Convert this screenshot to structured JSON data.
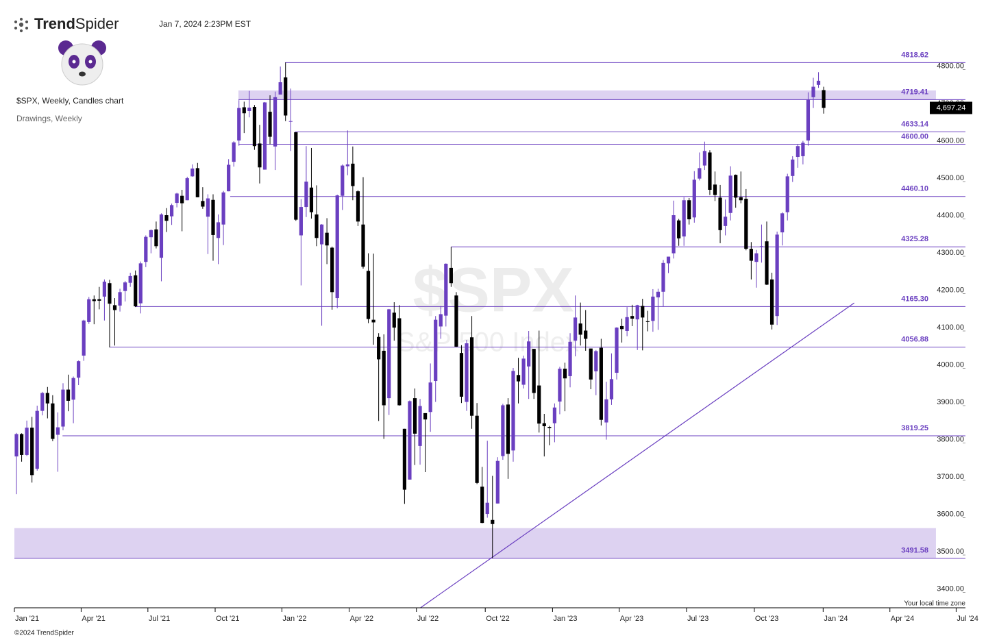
{
  "header": {
    "brand_bold": "Trend",
    "brand_light": "Spider",
    "timestamp": "Jan 7, 2024 2:23PM EST"
  },
  "footer": {
    "copyright": "©2024 TrendSpider",
    "timezone": "Your local time zone"
  },
  "chart_data": {
    "type": "candlestick",
    "title": "$SPX, Weekly, Candles chart",
    "subtitle": "Drawings, Weekly",
    "watermark": "$SPX",
    "watermark_sub": "S&P 500 Index",
    "up_color": "#6a3fc0",
    "down_color": "#000000",
    "level_color": "#6a3fc0",
    "zone_color": "#d9cdf0",
    "ylim": [
      3400,
      4800
    ],
    "yticks": [
      {
        "value": 3400,
        "label": "3400.00"
      },
      {
        "value": 3500,
        "label": "3500.00"
      },
      {
        "value": 3600,
        "label": "3600.00"
      },
      {
        "value": 3700,
        "label": "3700.00"
      },
      {
        "value": 3800,
        "label": "3800.00"
      },
      {
        "value": 3900,
        "label": "3900.00"
      },
      {
        "value": 4000,
        "label": "4000.00"
      },
      {
        "value": 4100,
        "label": "4100.00"
      },
      {
        "value": 4200,
        "label": "4200.00"
      },
      {
        "value": 4300,
        "label": "4300.00"
      },
      {
        "value": 4400,
        "label": "4400.00"
      },
      {
        "value": 4500,
        "label": "4500.00"
      },
      {
        "value": 4600,
        "label": "4600.00"
      },
      {
        "value": 4700,
        "label": "4700.00"
      },
      {
        "value": 4800,
        "label": "4800.00"
      }
    ],
    "xlim": [
      -0.4,
      183.4
    ],
    "xticks": [
      {
        "value": -0.4,
        "label": "Jan '21"
      },
      {
        "value": 12.5,
        "label": "Apr '21"
      },
      {
        "value": 25.4,
        "label": "Jul '21"
      },
      {
        "value": 38.4,
        "label": "Oct '21"
      },
      {
        "value": 51.3,
        "label": "Jan '22"
      },
      {
        "value": 64.3,
        "label": "Apr '22"
      },
      {
        "value": 77.3,
        "label": "Jul '22"
      },
      {
        "value": 90.6,
        "label": "Oct '22"
      },
      {
        "value": 103.6,
        "label": "Jan '23"
      },
      {
        "value": 116.5,
        "label": "Apr '23"
      },
      {
        "value": 129.5,
        "label": "Jul '23"
      },
      {
        "value": 142.6,
        "label": "Oct '23"
      },
      {
        "value": 155.9,
        "label": "Jan '24"
      },
      {
        "value": 168.8,
        "label": "Apr '24"
      },
      {
        "value": 181.6,
        "label": "Jul '24"
      }
    ],
    "last_price": {
      "value": 4697.24,
      "label": "4,697.24"
    },
    "levels": [
      {
        "value": 4818.62,
        "label": "4818.62",
        "start": 51.9
      },
      {
        "value": 4719.41,
        "label": "4719.41",
        "start": 42.9
      },
      {
        "value": 4633.14,
        "label": "4633.14",
        "start": 53.8
      },
      {
        "value": 4600.0,
        "label": "4600.00",
        "start": 42.9
      },
      {
        "value": 4460.1,
        "label": "4460.10",
        "start": 41.3
      },
      {
        "value": 4325.28,
        "label": "4325.28",
        "start": 84
      },
      {
        "value": 4165.3,
        "label": "4165.30",
        "start": 22.9
      },
      {
        "value": 4056.88,
        "label": "4056.88",
        "start": 18
      },
      {
        "value": 3819.25,
        "label": "3819.25",
        "start": 8.9
      },
      {
        "value": 3491.58,
        "label": "3491.58",
        "start": -0.4
      }
    ],
    "zones": [
      {
        "low": 4719.41,
        "high": 4744,
        "start": 42.9,
        "end": 177.7
      },
      {
        "low": 3491.58,
        "high": 3572,
        "start": -0.4,
        "end": 177.7
      }
    ],
    "trendline": {
      "x": [
        78.1,
        161.9
      ],
      "y": [
        3359,
        4175
      ]
    },
    "ohlc": [
      [
        3764,
        3827,
        3663,
        3824
      ],
      [
        3824,
        3826,
        3750,
        3768
      ],
      [
        3768,
        3860,
        3765,
        3841
      ],
      [
        3841,
        3870,
        3694,
        3714
      ],
      [
        3731,
        3900,
        3726,
        3886
      ],
      [
        3886,
        3937,
        3874,
        3934
      ],
      [
        3934,
        3950,
        3866,
        3906
      ],
      [
        3906,
        3928,
        3805,
        3811
      ],
      [
        3822,
        3882,
        3723,
        3842
      ],
      [
        3844,
        3960,
        3834,
        3943
      ],
      [
        3943,
        3983,
        3885,
        3913
      ],
      [
        3916,
        3978,
        3853,
        3974
      ],
      [
        3975,
        4021,
        3955,
        4019
      ],
      [
        4034,
        4130,
        4020,
        4128
      ],
      [
        4124,
        4191,
        4119,
        4185
      ],
      [
        4185,
        4195,
        4118,
        4180
      ],
      [
        4185,
        4218,
        4158,
        4181
      ],
      [
        4192,
        4238,
        4128,
        4232
      ],
      [
        4228,
        4237,
        4056,
        4173
      ],
      [
        4169,
        4188,
        4061,
        4156
      ],
      [
        4168,
        4213,
        4152,
        4204
      ],
      [
        4207,
        4234,
        4179,
        4230
      ],
      [
        4229,
        4256,
        4218,
        4247
      ],
      [
        4249,
        4262,
        4164,
        4166
      ],
      [
        4174,
        4286,
        4147,
        4281
      ],
      [
        4285,
        4356,
        4271,
        4352
      ],
      [
        4351,
        4372,
        4308,
        4370
      ],
      [
        4372,
        4393,
        4321,
        4327
      ],
      [
        4296,
        4415,
        4233,
        4412
      ],
      [
        4410,
        4429,
        4365,
        4395
      ],
      [
        4407,
        4441,
        4384,
        4437
      ],
      [
        4443,
        4470,
        4431,
        4468
      ],
      [
        4462,
        4478,
        4367,
        4442
      ],
      [
        4450,
        4513,
        4450,
        4509
      ],
      [
        4514,
        4546,
        4513,
        4535
      ],
      [
        4536,
        4550,
        4458,
        4458
      ],
      [
        4448,
        4485,
        4427,
        4433
      ],
      [
        4406,
        4466,
        4306,
        4455
      ],
      [
        4451,
        4466,
        4288,
        4357
      ],
      [
        4349,
        4412,
        4279,
        4391
      ],
      [
        4385,
        4475,
        4330,
        4471
      ],
      [
        4474,
        4560,
        4474,
        4545
      ],
      [
        4553,
        4608,
        4540,
        4605
      ],
      [
        4610,
        4718,
        4596,
        4697
      ],
      [
        4699,
        4714,
        4630,
        4683
      ],
      [
        4689,
        4743,
        4672,
        4698
      ],
      [
        4700,
        4705,
        4585,
        4595
      ],
      [
        4602,
        4652,
        4495,
        4538
      ],
      [
        4532,
        4713,
        4532,
        4712
      ],
      [
        4687,
        4731,
        4600,
        4620
      ],
      [
        4594,
        4741,
        4531,
        4726
      ],
      [
        4733,
        4808,
        4733,
        4766
      ],
      [
        4779,
        4818.62,
        4662,
        4677
      ],
      [
        4662,
        4749,
        4582,
        4662
      ],
      [
        4632,
        4632,
        4395,
        4398
      ],
      [
        4356,
        4453,
        4222,
        4432
      ],
      [
        4432,
        4595,
        4405,
        4500
      ],
      [
        4484,
        4590,
        4401,
        4418
      ],
      [
        4412,
        4490,
        4327,
        4349
      ],
      [
        4332,
        4386,
        4114,
        4385
      ],
      [
        4363,
        4402,
        4279,
        4329
      ],
      [
        4323,
        4326,
        4157,
        4204
      ],
      [
        4188,
        4465,
        4161,
        4463
      ],
      [
        4462,
        4546,
        4424,
        4543
      ],
      [
        4541,
        4637,
        4517,
        4546
      ],
      [
        4548,
        4594,
        4450,
        4488
      ],
      [
        4474,
        4477,
        4381,
        4393
      ],
      [
        4385,
        4512,
        4267,
        4272
      ],
      [
        4261,
        4308,
        4121,
        4132
      ],
      [
        4130,
        4307,
        4063,
        4123
      ],
      [
        4084,
        4094,
        3859,
        4024
      ],
      [
        4047,
        4091,
        3811,
        3901
      ],
      [
        3920,
        4159,
        3875,
        4158
      ],
      [
        4149,
        4177,
        4074,
        4109
      ],
      [
        4134,
        4169,
        3900,
        3901
      ],
      [
        3838,
        3838,
        3637,
        3675
      ],
      [
        3702,
        3914,
        3702,
        3912
      ],
      [
        3920,
        3946,
        3741,
        3825
      ],
      [
        3792,
        3918,
        3742,
        3899
      ],
      [
        3880,
        3880,
        3722,
        3863
      ],
      [
        3883,
        4013,
        3830,
        3962
      ],
      [
        3966,
        4140,
        3910,
        4130
      ],
      [
        4112,
        4167,
        4079,
        4145
      ],
      [
        4141,
        4281,
        4112,
        4280
      ],
      [
        4269,
        4325.28,
        4218,
        4228
      ],
      [
        4195,
        4204,
        4057,
        4058
      ],
      [
        4041,
        4062,
        3907,
        3924
      ],
      [
        3910,
        4076,
        3886,
        4067
      ],
      [
        4083,
        4140,
        3838,
        3873
      ],
      [
        3873,
        3907,
        3690,
        3693
      ],
      [
        3683,
        3736,
        3585,
        3586
      ],
      [
        3610,
        3806,
        3600,
        3640
      ],
      [
        3594,
        3712,
        3491.58,
        3583
      ],
      [
        3638,
        3762,
        3638,
        3752
      ],
      [
        3765,
        3905,
        3755,
        3901
      ],
      [
        3903,
        3920,
        3704,
        3771
      ],
      [
        3780,
        4001,
        3750,
        3993
      ],
      [
        3982,
        4028,
        3906,
        3965
      ],
      [
        3956,
        4034,
        3946,
        4026
      ],
      [
        4005,
        4100,
        3918,
        4072
      ],
      [
        4052,
        4052,
        3918,
        3934
      ],
      [
        3954,
        4101,
        3828,
        3852
      ],
      [
        3853,
        3878,
        3764,
        3845
      ],
      [
        3843,
        3846,
        3794,
        3840
      ],
      [
        3853,
        3906,
        3802,
        3895
      ],
      [
        3911,
        4004,
        3877,
        3999
      ],
      [
        3999,
        4015,
        3885,
        3973
      ],
      [
        3979,
        4094,
        3949,
        4071
      ],
      [
        4074,
        4195,
        4032,
        4136
      ],
      [
        4120,
        4176,
        4061,
        4090
      ],
      [
        4101,
        4156,
        4047,
        4079
      ],
      [
        4053,
        4053,
        3944,
        3970
      ],
      [
        3992,
        4049,
        3928,
        4046
      ],
      [
        4055,
        4079,
        3847,
        3862
      ],
      [
        3855,
        3964,
        3809,
        3917
      ],
      [
        3917,
        4040,
        3902,
        3971
      ],
      [
        3988,
        4110,
        3970,
        4109
      ],
      [
        4113,
        4133,
        4069,
        4105
      ],
      [
        4100,
        4164,
        4086,
        4137
      ],
      [
        4140,
        4170,
        4113,
        4133
      ],
      [
        4131,
        4170,
        4049,
        4169
      ],
      [
        4167,
        4186,
        4048,
        4136
      ],
      [
        4126,
        4154,
        4099,
        4124
      ],
      [
        4127,
        4212,
        4098,
        4192
      ],
      [
        4190,
        4213,
        4103,
        4205
      ],
      [
        4205,
        4290,
        4166,
        4282
      ],
      [
        4281,
        4299,
        4255,
        4299
      ],
      [
        4308,
        4449,
        4294,
        4410
      ],
      [
        4396,
        4400,
        4328,
        4348
      ],
      [
        4353,
        4458,
        4328,
        4450
      ],
      [
        4450,
        4456,
        4385,
        4399
      ],
      [
        4404,
        4528,
        4390,
        4505
      ],
      [
        4508,
        4578,
        4503,
        4536
      ],
      [
        4543,
        4607,
        4531,
        4582
      ],
      [
        4578,
        4584,
        4464,
        4478
      ],
      [
        4492,
        4527,
        4448,
        4464
      ],
      [
        4457,
        4491,
        4335,
        4370
      ],
      [
        4381,
        4452,
        4356,
        4406
      ],
      [
        4416,
        4541,
        4396,
        4516
      ],
      [
        4518,
        4519,
        4430,
        4457
      ],
      [
        4458,
        4527,
        4442,
        4450
      ],
      [
        4454,
        4480,
        4316,
        4320
      ],
      [
        4320,
        4338,
        4238,
        4288
      ],
      [
        4285,
        4317,
        4216,
        4308
      ],
      [
        4327,
        4385,
        4283,
        4327
      ],
      [
        4340,
        4393,
        4223,
        4224
      ],
      [
        4238,
        4256,
        4104,
        4117
      ],
      [
        4140,
        4366,
        4116,
        4358
      ],
      [
        4364,
        4418,
        4329,
        4415
      ],
      [
        4418,
        4521,
        4396,
        4514
      ],
      [
        4515,
        4568,
        4499,
        4559
      ],
      [
        4566,
        4599,
        4537,
        4595
      ],
      [
        4568,
        4609,
        4546,
        4604
      ],
      [
        4610,
        4739,
        4596,
        4719
      ],
      [
        4726,
        4778,
        4697,
        4754
      ],
      [
        4759,
        4793,
        4751,
        4770
      ],
      [
        4745,
        4754,
        4682,
        4697.24
      ]
    ]
  }
}
